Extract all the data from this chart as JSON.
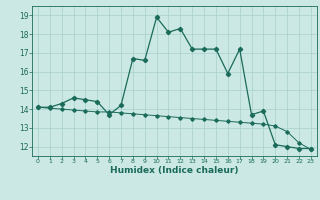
{
  "xlabel": "Humidex (Indice chaleur)",
  "background_color": "#cce8e4",
  "grid_color": "#a8d0cc",
  "line_color": "#1a6b5a",
  "xlim": [
    -0.5,
    23.5
  ],
  "ylim": [
    11.5,
    19.5
  ],
  "yticks": [
    12,
    13,
    14,
    15,
    16,
    17,
    18,
    19
  ],
  "xticks": [
    0,
    1,
    2,
    3,
    4,
    5,
    6,
    7,
    8,
    9,
    10,
    11,
    12,
    13,
    14,
    15,
    16,
    17,
    18,
    19,
    20,
    21,
    22,
    23
  ],
  "line1_x": [
    0,
    1,
    2,
    3,
    4,
    5,
    6,
    7,
    8,
    9,
    10,
    11,
    12,
    13,
    14,
    15,
    16,
    17,
    18,
    19,
    20,
    21,
    22,
    23
  ],
  "line1_y": [
    14.1,
    14.1,
    14.3,
    14.6,
    14.5,
    14.4,
    13.7,
    14.2,
    16.7,
    16.6,
    18.9,
    18.1,
    18.3,
    17.2,
    17.2,
    17.2,
    15.9,
    17.2,
    13.7,
    13.9,
    12.1,
    12.0,
    11.9,
    11.9
  ],
  "line2_x": [
    0,
    1,
    2,
    3,
    4,
    5,
    6,
    7,
    8,
    9,
    10,
    11,
    12,
    13,
    14,
    15,
    16,
    17,
    18,
    19,
    20,
    21,
    22,
    23
  ],
  "line2_y": [
    14.1,
    14.05,
    14.0,
    13.95,
    13.9,
    13.85,
    13.85,
    13.8,
    13.75,
    13.7,
    13.65,
    13.6,
    13.55,
    13.5,
    13.45,
    13.4,
    13.35,
    13.3,
    13.25,
    13.2,
    13.1,
    12.8,
    12.2,
    11.85
  ]
}
